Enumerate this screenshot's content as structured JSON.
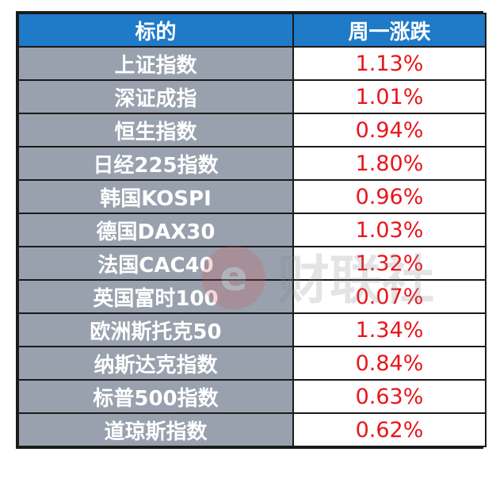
{
  "table": {
    "headers": [
      "标的",
      "周一涨跌"
    ],
    "rows": [
      {
        "name": "上证指数",
        "change": "1.13%"
      },
      {
        "name": "深证成指",
        "change": "1.01%"
      },
      {
        "name": "恒生指数",
        "change": "0.94%"
      },
      {
        "name": "日经225指数",
        "change": "1.80%"
      },
      {
        "name": "韩国KOSPI",
        "change": "0.96%"
      },
      {
        "name": "德国DAX30",
        "change": "1.03%"
      },
      {
        "name": "法国CAC40",
        "change": "1.32%"
      },
      {
        "name": "英国富时100",
        "change": "0.07%"
      },
      {
        "name": "欧洲斯托克50",
        "change": "1.34%"
      },
      {
        "name": "纳斯达克指数",
        "change": "0.84%"
      },
      {
        "name": "标普500指数",
        "change": "0.63%"
      },
      {
        "name": "道琼斯指数",
        "change": "0.62%"
      }
    ]
  },
  "watermark": {
    "text": "财联社",
    "logo_letter": "e"
  },
  "colors": {
    "header_bg": "#1f7ac7",
    "name_bg": "#98a1ad",
    "positive": "#e8151b"
  }
}
